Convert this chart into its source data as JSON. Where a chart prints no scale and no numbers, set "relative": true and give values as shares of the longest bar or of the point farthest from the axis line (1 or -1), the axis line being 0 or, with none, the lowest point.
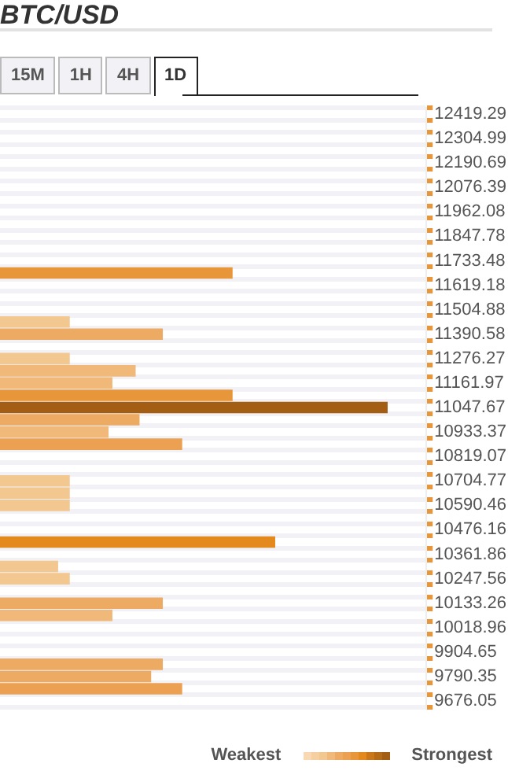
{
  "chart_data": {
    "type": "bar",
    "orientation": "horizontal",
    "relative": true,
    "title": "BTC/USD",
    "annotations": [
      "15M",
      "1H",
      "4H",
      "1D",
      "Weakest",
      "Strongest"
    ],
    "categories": [
      "12419.29",
      null,
      "12304.99",
      null,
      "12190.69",
      null,
      "12076.39",
      null,
      "11962.08",
      null,
      "11847.78",
      null,
      "11733.48",
      null,
      "11619.18",
      null,
      "11504.88",
      null,
      "11390.58",
      null,
      "11276.27",
      null,
      "11161.97",
      null,
      "11047.67",
      null,
      "10933.37",
      null,
      "10819.07",
      null,
      "10704.77",
      null,
      "10590.46",
      null,
      "10476.16",
      null,
      "10361.86",
      null,
      "10247.56",
      null,
      "10133.26",
      null,
      "10018.96",
      null,
      "9904.65",
      null,
      "9790.35",
      null,
      "9676.05"
    ],
    "values": [
      null,
      null,
      null,
      null,
      null,
      null,
      null,
      null,
      null,
      null,
      null,
      null,
      null,
      0.6,
      null,
      null,
      null,
      0.18,
      0.42,
      null,
      0.18,
      0.35,
      0.29,
      0.6,
      1,
      0.36,
      0.28,
      0.47,
      null,
      null,
      0.18,
      0.18,
      0.18,
      null,
      null,
      0.71,
      null,
      0.15,
      0.18,
      null,
      0.42,
      0.29,
      null,
      null,
      null,
      0.42,
      0.39,
      0.47,
      null
    ],
    "colors": [
      null,
      null,
      null,
      null,
      null,
      null,
      null,
      null,
      null,
      null,
      null,
      null,
      null,
      "#e8963a",
      null,
      null,
      null,
      "#f3c790",
      "#edaa62",
      null,
      "#f3c790",
      "#f0b97a",
      "#f0b97a",
      "#e8963a",
      "#a35e14",
      "#edaa62",
      "#f0b97a",
      "#eba052",
      null,
      null,
      "#f3c790",
      "#f3c790",
      "#f3c790",
      null,
      null,
      "#e4891e",
      null,
      "#f3c790",
      "#f3c790",
      null,
      "#edaa62",
      "#f0b97a",
      null,
      null,
      null,
      "#edaa62",
      "#edaa62",
      "#eba052",
      null
    ],
    "grid": true,
    "legend": false
  }
}
